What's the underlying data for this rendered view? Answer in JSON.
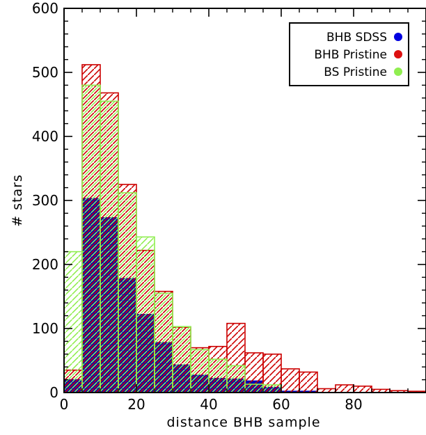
{
  "chart_data": {
    "type": "bar",
    "xlabel": "distance BHB sample",
    "ylabel": "# stars",
    "xlim": [
      0,
      100
    ],
    "ylim": [
      0,
      600
    ],
    "xticks": [
      0,
      20,
      40,
      60,
      80
    ],
    "yticks": [
      0,
      100,
      200,
      300,
      400,
      500,
      600
    ],
    "bin_edges": [
      0,
      5,
      10,
      15,
      20,
      25,
      30,
      35,
      40,
      45,
      50,
      55,
      60,
      65,
      70,
      75,
      80,
      85,
      90,
      95,
      100
    ],
    "legend_position": "top-right",
    "series": [
      {
        "name": "BS Pristine",
        "color": "#90ee50",
        "fill": "hatch",
        "values": [
          220,
          480,
          455,
          312,
          243,
          155,
          103,
          67,
          52,
          42,
          13,
          12,
          0,
          0,
          0,
          0,
          0,
          0,
          0,
          0
        ]
      },
      {
        "name": "BHB Pristine",
        "color": "#cc0000",
        "fill": "hatch",
        "values": [
          35,
          512,
          468,
          325,
          222,
          158,
          102,
          70,
          72,
          108,
          62,
          60,
          37,
          32,
          6,
          12,
          10,
          5,
          3,
          2
        ]
      },
      {
        "name": "BHB SDSS",
        "color": "#0000b4",
        "fill": "solid",
        "values": [
          20,
          303,
          273,
          178,
          122,
          78,
          43,
          27,
          22,
          21,
          18,
          8,
          2,
          2,
          0,
          0,
          0,
          0,
          0,
          0
        ]
      }
    ],
    "legend": [
      "BHB SDSS",
      "BHB Pristine",
      "BS Pristine"
    ]
  }
}
